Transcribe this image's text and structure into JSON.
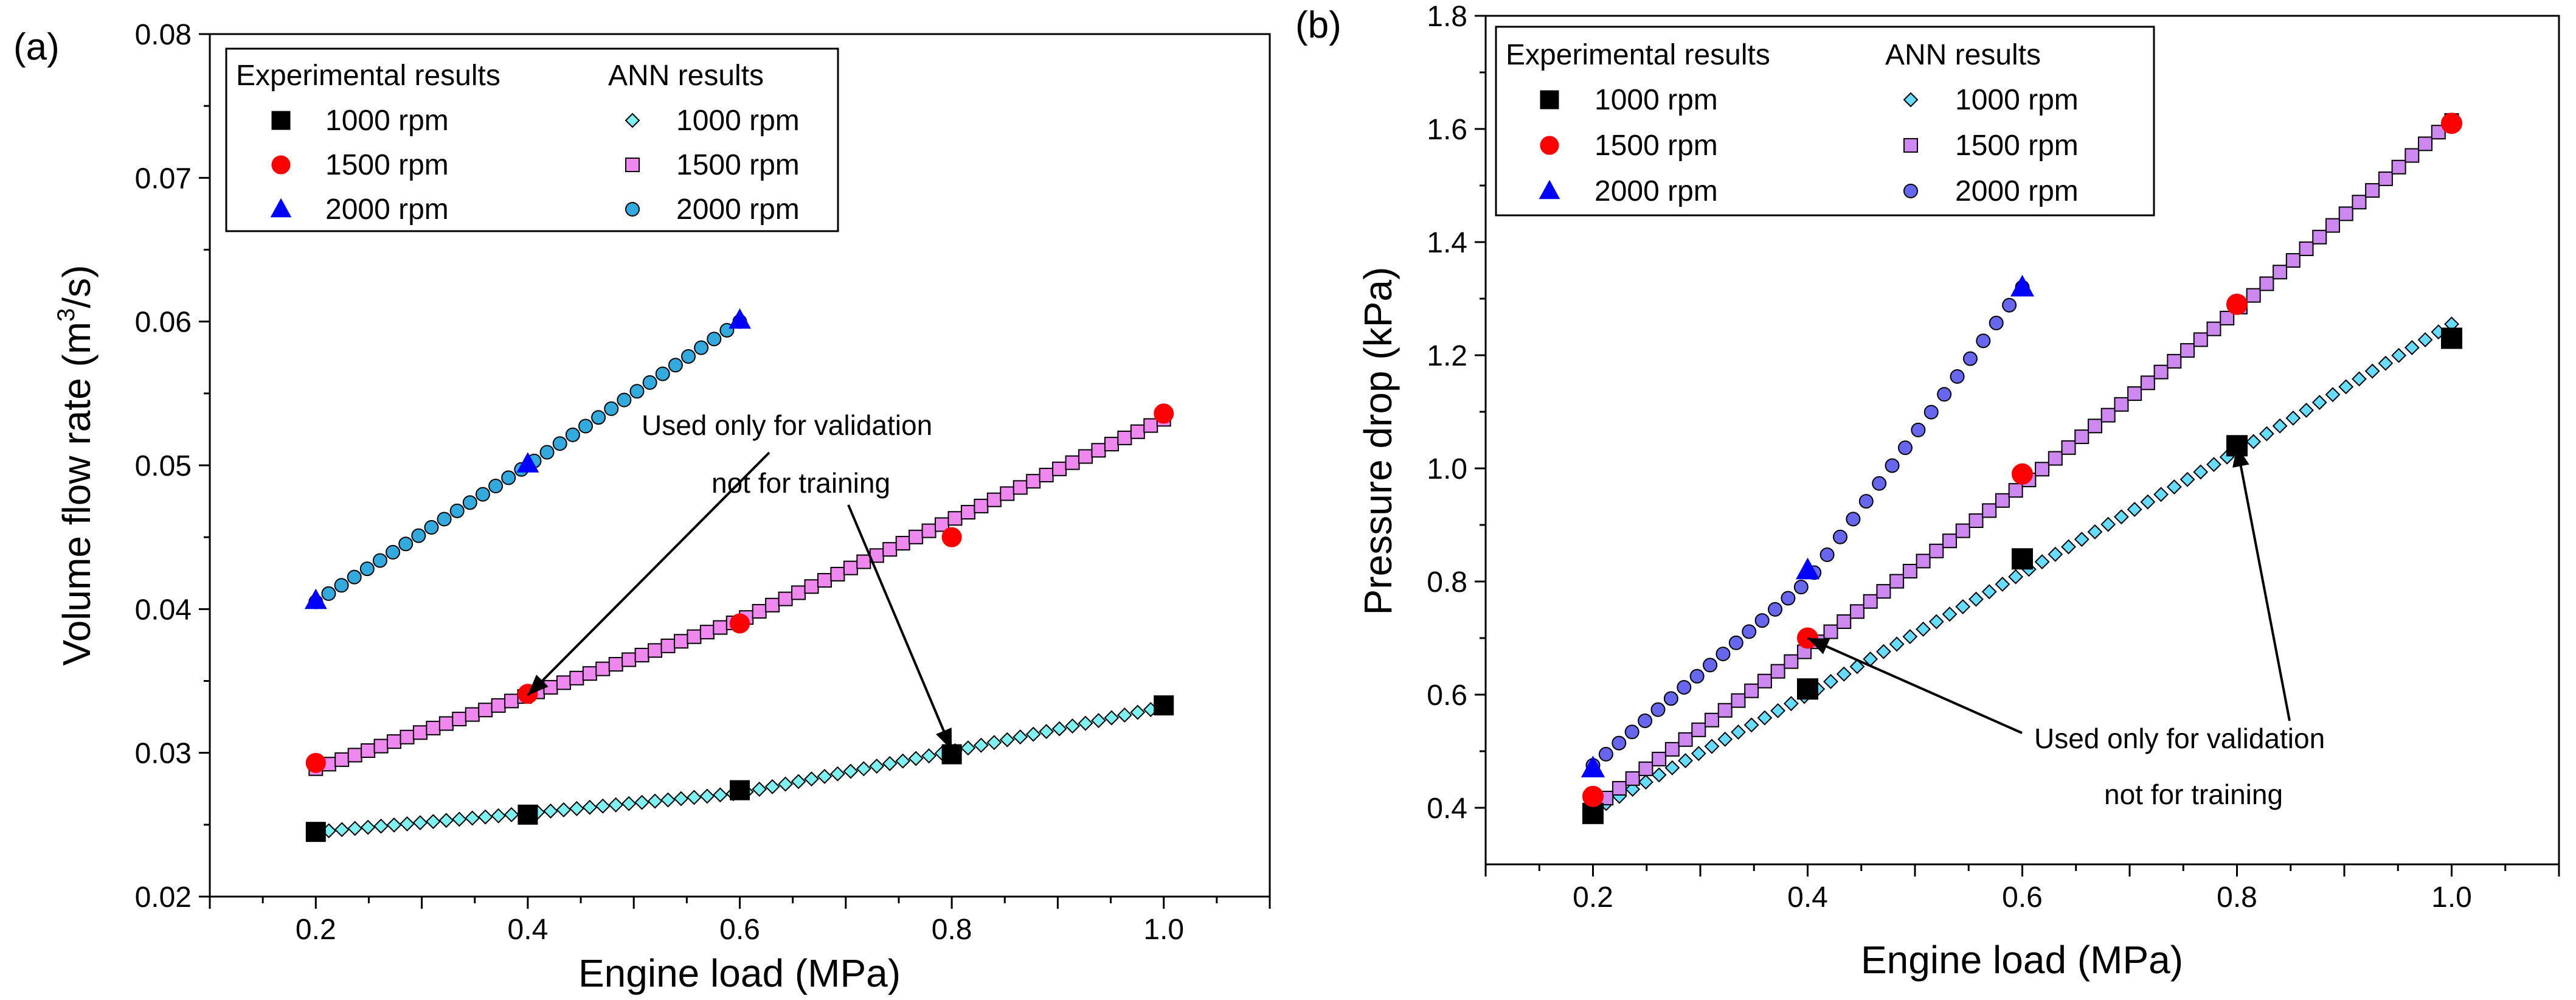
{
  "chart_data": [
    {
      "type": "scatter",
      "panel_label": "(a)",
      "xlabel": "Engine load (MPa)",
      "ylabel_main": "Volume flow rate (m",
      "ylabel_sup": "3",
      "ylabel_tail": "/s)",
      "xlim": [
        0.1,
        1.1
      ],
      "ylim": [
        0.02,
        0.08
      ],
      "xticks": [
        0.2,
        0.4,
        0.6,
        0.8,
        1.0
      ],
      "xtick_labels": [
        "0.2",
        "0.4",
        "0.6",
        "0.8",
        "1.0"
      ],
      "yticks": [
        0.02,
        0.03,
        0.04,
        0.05,
        0.06,
        0.07,
        0.08
      ],
      "ytick_labels": [
        "0.02",
        "0.03",
        "0.04",
        "0.05",
        "0.06",
        "0.07",
        "0.08"
      ],
      "legend": {
        "position": "top-left",
        "group1_title": "Experimental results",
        "group2_title": "ANN results",
        "experimental": [
          {
            "label": "1000 rpm",
            "marker": "square",
            "color": "#000000"
          },
          {
            "label": "1500 rpm",
            "marker": "circle",
            "color": "#ff0000"
          },
          {
            "label": "2000 rpm",
            "marker": "triangle",
            "color": "#0000ff"
          }
        ],
        "ann": [
          {
            "label": "1000 rpm",
            "marker": "diamond",
            "color": "#7ff0f0"
          },
          {
            "label": "1500 rpm",
            "marker": "square",
            "color": "#ee88ee"
          },
          {
            "label": "2000 rpm",
            "marker": "circle",
            "color": "#33aadd"
          }
        ]
      },
      "experimental": [
        {
          "name": "1000 rpm",
          "x": [
            0.2,
            0.4,
            0.6,
            0.8,
            1.0
          ],
          "y": [
            0.0245,
            0.0257,
            0.0274,
            0.0299,
            0.0333
          ]
        },
        {
          "name": "1500 rpm",
          "x": [
            0.2,
            0.4,
            0.6,
            0.8,
            1.0
          ],
          "y": [
            0.0293,
            0.0341,
            0.039,
            0.045,
            0.0536
          ]
        },
        {
          "name": "2000 rpm",
          "x": [
            0.2,
            0.4,
            0.6
          ],
          "y": [
            0.0406,
            0.0501,
            0.0601
          ]
        }
      ],
      "ann": [
        {
          "name": "1000 rpm",
          "x_start": 0.2,
          "x_end": 1.0,
          "n": 66,
          "y_at": [
            [
              0.2,
              0.0245
            ],
            [
              0.4,
              0.0258
            ],
            [
              0.6,
              0.0272
            ],
            [
              0.8,
              0.0301
            ],
            [
              1.0,
              0.0332
            ]
          ]
        },
        {
          "name": "1500 rpm",
          "x_start": 0.2,
          "x_end": 1.0,
          "n": 66,
          "y_at": [
            [
              0.2,
              0.0289
            ],
            [
              0.4,
              0.034
            ],
            [
              0.6,
              0.0392
            ],
            [
              0.8,
              0.0462
            ],
            [
              1.0,
              0.0532
            ]
          ]
        },
        {
          "name": "2000 rpm",
          "x_start": 0.2,
          "x_end": 0.6,
          "n": 34,
          "y_at": [
            [
              0.2,
              0.0405
            ],
            [
              0.4,
              0.05
            ],
            [
              0.6,
              0.06
            ]
          ]
        }
      ],
      "annotation": {
        "line1": "Used only for validation",
        "line2": "not for training",
        "arrow_targets": [
          [
            0.4,
            0.034
          ],
          [
            0.8,
            0.0302
          ]
        ]
      }
    },
    {
      "type": "scatter",
      "panel_label": "(b)",
      "xlabel": "Engine load (MPa)",
      "ylabel": "Pressure drop (kPa)",
      "xlim": [
        0.1,
        1.1
      ],
      "ylim": [
        0.3,
        1.8
      ],
      "xticks": [
        0.2,
        0.4,
        0.6,
        0.8,
        1.0
      ],
      "xtick_labels": [
        "0.2",
        "0.4",
        "0.6",
        "0.8",
        "1.0"
      ],
      "yticks": [
        0.4,
        0.6,
        0.8,
        1.0,
        1.2,
        1.4,
        1.6,
        1.8
      ],
      "ytick_labels": [
        "0.4",
        "0.6",
        "0.8",
        "1.0",
        "1.2",
        "1.4",
        "1.6",
        "1.8"
      ],
      "legend": {
        "position": "top-left",
        "group1_title": "Experimental results",
        "group2_title": "ANN results",
        "experimental": [
          {
            "label": "1000 rpm",
            "marker": "square",
            "color": "#000000"
          },
          {
            "label": "1500 rpm",
            "marker": "circle",
            "color": "#ff0000"
          },
          {
            "label": "2000 rpm",
            "marker": "triangle",
            "color": "#0000ff"
          }
        ],
        "ann": [
          {
            "label": "1000 rpm",
            "marker": "diamond",
            "color": "#66ddff"
          },
          {
            "label": "1500 rpm",
            "marker": "square",
            "color": "#cc88ee"
          },
          {
            "label": "2000 rpm",
            "marker": "circle",
            "color": "#6666ee"
          }
        ]
      },
      "experimental": [
        {
          "name": "1000 rpm",
          "x": [
            0.2,
            0.4,
            0.6,
            0.8,
            1.0
          ],
          "y": [
            0.39,
            0.61,
            0.84,
            1.04,
            1.23
          ]
        },
        {
          "name": "1500 rpm",
          "x": [
            0.2,
            0.4,
            0.6,
            0.8,
            1.0
          ],
          "y": [
            0.42,
            0.7,
            0.99,
            1.29,
            1.61
          ]
        },
        {
          "name": "2000 rpm",
          "x": [
            0.2,
            0.4,
            0.6
          ],
          "y": [
            0.47,
            0.82,
            1.32
          ]
        }
      ],
      "ann": [
        {
          "name": "1000 rpm",
          "x_start": 0.2,
          "x_end": 1.0,
          "n": 66,
          "y_at": [
            [
              0.2,
              0.395
            ],
            [
              0.4,
              0.6
            ],
            [
              0.6,
              0.815
            ],
            [
              0.8,
              1.03
            ],
            [
              1.0,
              1.255
            ]
          ]
        },
        {
          "name": "1500 rpm",
          "x_start": 0.2,
          "x_end": 1.0,
          "n": 66,
          "y_at": [
            [
              0.2,
              0.4
            ],
            [
              0.4,
              0.68
            ],
            [
              0.6,
              0.97
            ],
            [
              0.8,
              1.28
            ],
            [
              1.0,
              1.615
            ]
          ]
        },
        {
          "name": "2000 rpm",
          "x_start": 0.2,
          "x_end": 0.6,
          "n": 34,
          "y_at": [
            [
              0.2,
              0.475
            ],
            [
              0.4,
              0.8
            ],
            [
              0.6,
              1.32
            ]
          ]
        }
      ],
      "annotation": {
        "line1": "Used only for validation",
        "line2": "not for training",
        "arrow_targets": [
          [
            0.4,
            0.7
          ],
          [
            0.8,
            1.04
          ]
        ]
      }
    }
  ]
}
